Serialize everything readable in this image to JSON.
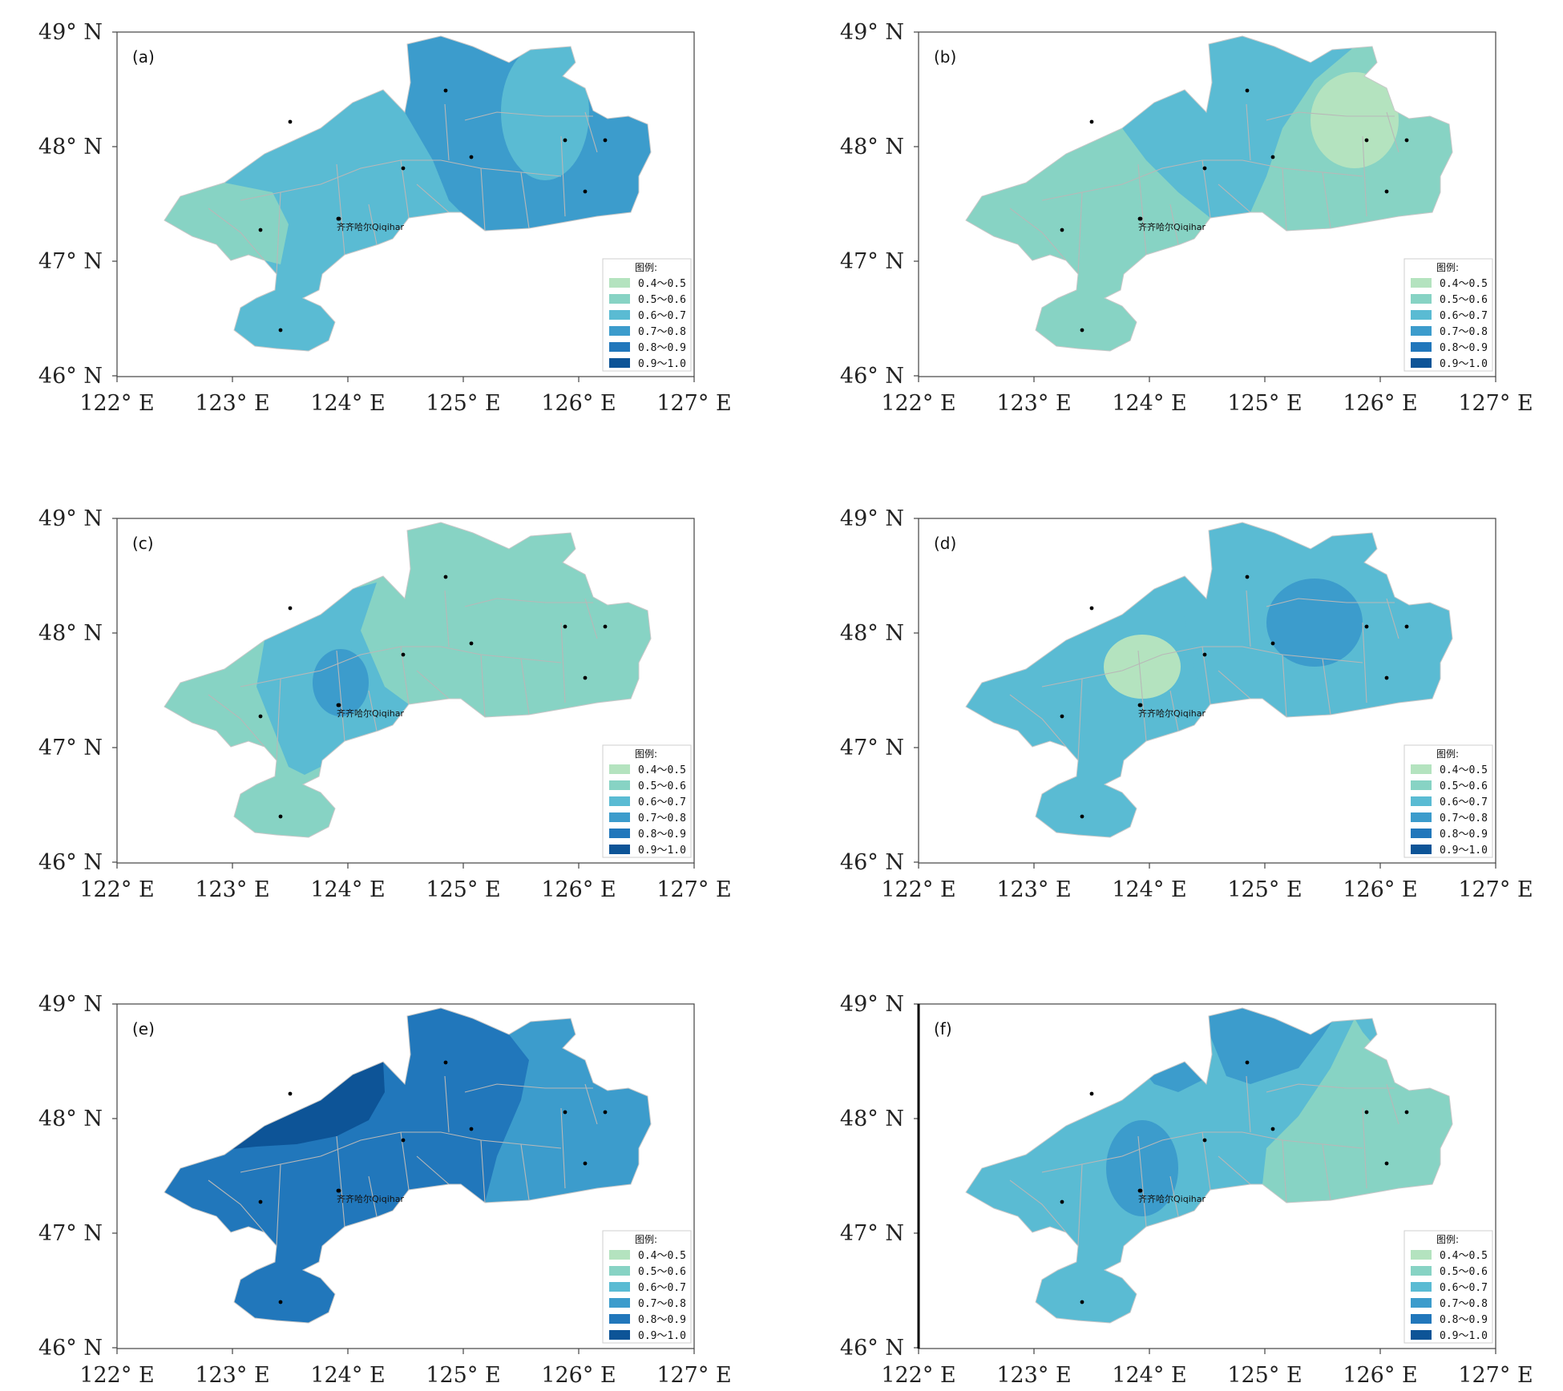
{
  "map": {
    "lat_ticks": [
      "49° N",
      "48° N",
      "47° N",
      "46° N"
    ],
    "lon_ticks": [
      "122° E",
      "123° E",
      "124° E",
      "125° E",
      "126° E",
      "127° E"
    ],
    "legend_title": "图例:",
    "legend_items": [
      {
        "label": "0.4～0.5",
        "color": "#b4e3bf"
      },
      {
        "label": "0.5～0.6",
        "color": "#87d3c4"
      },
      {
        "label": "0.6～0.7",
        "color": "#5abbd3"
      },
      {
        "label": "0.7～0.8",
        "color": "#3c9ccc"
      },
      {
        "label": "0.8～0.9",
        "color": "#2177bb"
      },
      {
        "label": "0.9～1.0",
        "color": "#0d5497"
      }
    ],
    "city_label": "齐齐哈尔Qiqihar",
    "panels": [
      {
        "id": "(a)",
        "base": 2,
        "show_city": true
      },
      {
        "id": "(b)",
        "base": 1,
        "show_city": true
      },
      {
        "id": "(c)",
        "base": 1,
        "show_city": true
      },
      {
        "id": "(d)",
        "base": 2,
        "show_city": true
      },
      {
        "id": "(e)",
        "base": 4,
        "show_city": true
      },
      {
        "id": "(f)",
        "base": 2,
        "show_city": true
      }
    ]
  }
}
